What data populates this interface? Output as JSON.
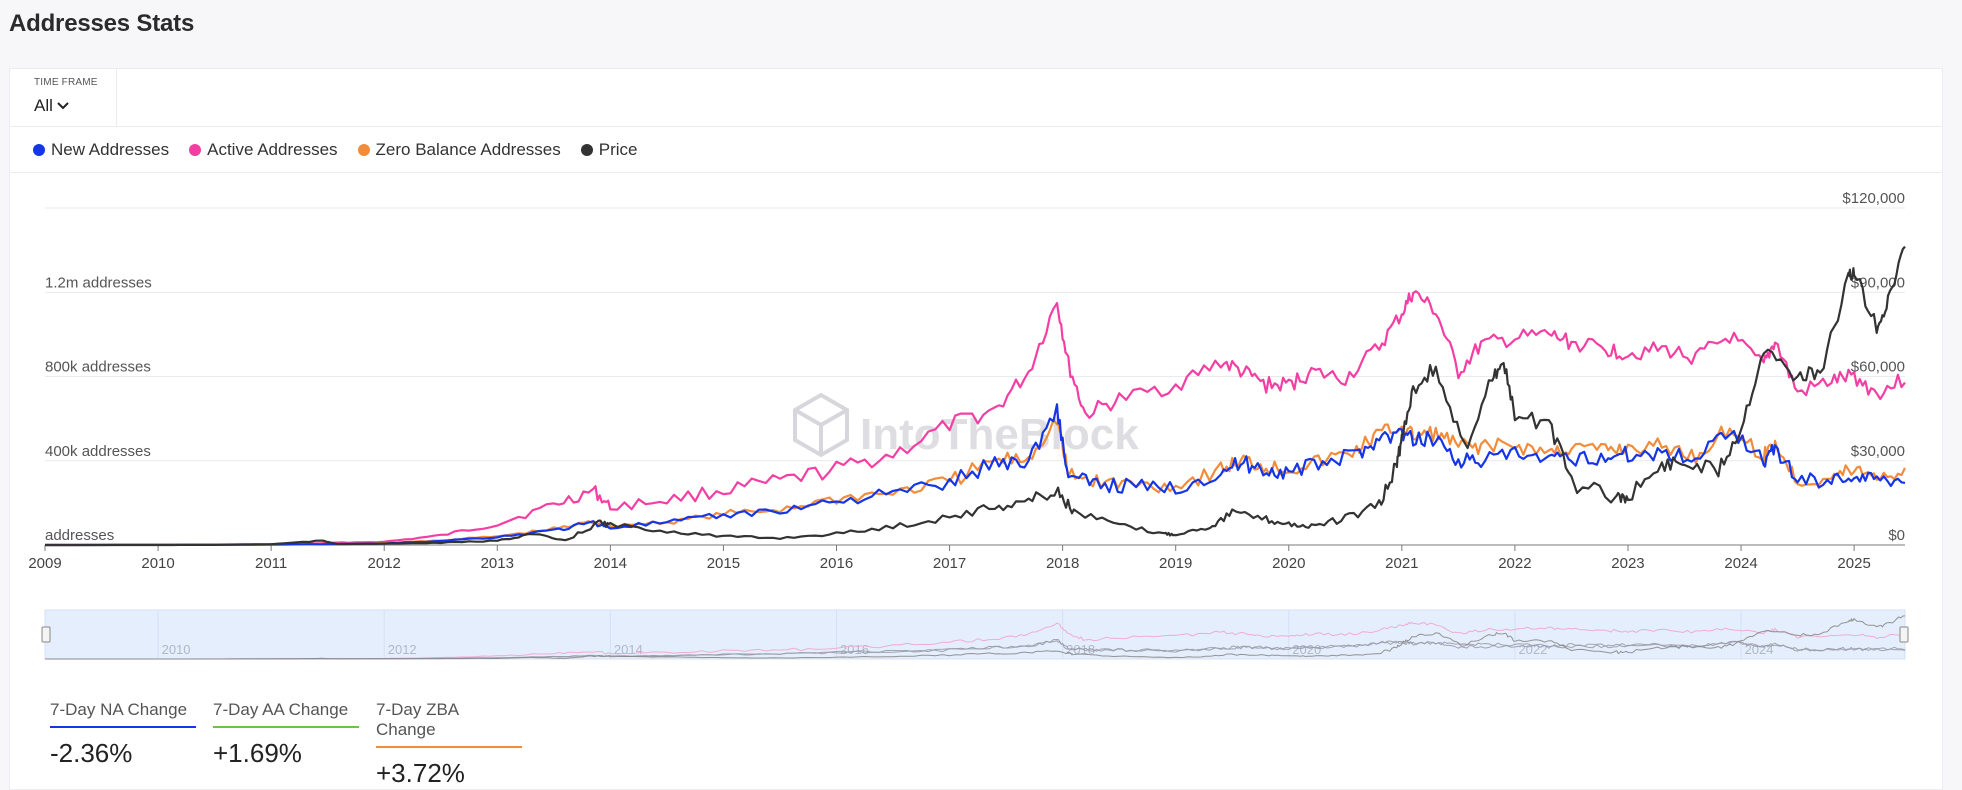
{
  "page": {
    "title": "Addresses Stats"
  },
  "timeframe": {
    "label": "TIME FRAME",
    "value": "All"
  },
  "legend": [
    {
      "label": "New Addresses",
      "color": "#1536e6"
    },
    {
      "label": "Active Addresses",
      "color": "#f33fa4"
    },
    {
      "label": "Zero Balance Addresses",
      "color": "#f28c3a"
    },
    {
      "label": "Price",
      "color": "#333333"
    }
  ],
  "watermark": "IntoTheBlock",
  "stats": [
    {
      "label": "7-Day NA Change",
      "value": "-2.36%",
      "color": "#1536e6"
    },
    {
      "label": "7-Day AA Change",
      "value": "+1.69%",
      "color": "#6cc24a"
    },
    {
      "label": "7-Day ZBA Change",
      "value": "+3.72%",
      "color": "#f28c3a"
    }
  ],
  "chart_data": {
    "type": "line",
    "x_range": [
      2009.0,
      2025.45
    ],
    "x_ticks": [
      "2009",
      "2010",
      "2011",
      "2012",
      "2013",
      "2014",
      "2015",
      "2016",
      "2017",
      "2018",
      "2019",
      "2020",
      "2021",
      "2022",
      "2023",
      "2024",
      "2025"
    ],
    "navigator_ticks": [
      "2010",
      "2012",
      "2014",
      "2016",
      "2018",
      "2020",
      "2022",
      "2024"
    ],
    "y_left": {
      "range": [
        0,
        1600000
      ],
      "ticks": [
        {
          "value": 0,
          "label": "addresses"
        },
        {
          "value": 400000,
          "label": "400k addresses"
        },
        {
          "value": 800000,
          "label": "800k addresses"
        },
        {
          "value": 1200000,
          "label": "1.2m addresses"
        }
      ]
    },
    "y_right": {
      "range": [
        0,
        120000
      ],
      "ticks": [
        {
          "value": 0,
          "label": "$0"
        },
        {
          "value": 30000,
          "label": "$30,000"
        },
        {
          "value": 60000,
          "label": "$60,000"
        },
        {
          "value": 90000,
          "label": "$90,000"
        },
        {
          "value": 120000,
          "label": "$120,000"
        }
      ]
    },
    "grid": true,
    "series": [
      {
        "name": "Active Addresses",
        "color": "#f33fa4",
        "axis": "left",
        "x": [
          2009.0,
          2010.0,
          2011.0,
          2011.3,
          2011.5,
          2012.0,
          2012.5,
          2013.0,
          2013.5,
          2013.85,
          2014.0,
          2014.5,
          2015.0,
          2015.5,
          2016.0,
          2016.5,
          2017.0,
          2017.4,
          2017.7,
          2017.95,
          2018.05,
          2018.2,
          2018.5,
          2019.0,
          2019.4,
          2019.6,
          2019.8,
          2020.0,
          2020.2,
          2020.5,
          2020.8,
          2021.0,
          2021.1,
          2021.3,
          2021.5,
          2021.7,
          2022.0,
          2022.3,
          2022.5,
          2022.8,
          2023.0,
          2023.3,
          2023.6,
          2023.9,
          2024.2,
          2024.3,
          2024.5,
          2024.8,
          2025.0,
          2025.2,
          2025.45
        ],
        "y": [
          0,
          1000,
          3000,
          5000,
          10000,
          15000,
          45000,
          100000,
          190000,
          260000,
          180000,
          215000,
          260000,
          300000,
          360000,
          430000,
          570000,
          640000,
          820000,
          1160000,
          860000,
          620000,
          690000,
          760000,
          870000,
          820000,
          760000,
          760000,
          820000,
          790000,
          940000,
          1100000,
          1200000,
          1110000,
          820000,
          950000,
          980000,
          1000000,
          960000,
          930000,
          910000,
          930000,
          890000,
          990000,
          850000,
          970000,
          720000,
          780000,
          800000,
          720000,
          790000
        ]
      },
      {
        "name": "Zero Balance Addresses",
        "color": "#f28c3a",
        "axis": "left",
        "x": [
          2009.0,
          2010.0,
          2011.0,
          2011.5,
          2012.0,
          2012.5,
          2013.0,
          2013.5,
          2013.85,
          2014.0,
          2014.5,
          2015.0,
          2015.5,
          2016.0,
          2016.5,
          2017.0,
          2017.4,
          2017.7,
          2017.95,
          2018.05,
          2018.3,
          2018.6,
          2019.0,
          2019.4,
          2019.6,
          2019.8,
          2020.0,
          2020.3,
          2020.6,
          2020.8,
          2021.0,
          2021.1,
          2021.3,
          2021.5,
          2021.7,
          2022.0,
          2022.3,
          2022.5,
          2022.8,
          2023.0,
          2023.3,
          2023.6,
          2023.9,
          2024.2,
          2024.3,
          2024.5,
          2024.8,
          2025.0,
          2025.2,
          2025.45
        ],
        "y": [
          0,
          500,
          2000,
          5000,
          8000,
          22000,
          40000,
          75000,
          110000,
          90000,
          110000,
          145000,
          170000,
          220000,
          250000,
          300000,
          400000,
          410000,
          600000,
          330000,
          300000,
          290000,
          280000,
          360000,
          400000,
          370000,
          360000,
          400000,
          450000,
          530000,
          560000,
          520000,
          530000,
          470000,
          470000,
          470000,
          440000,
          460000,
          450000,
          460000,
          470000,
          420000,
          560000,
          420000,
          480000,
          300000,
          320000,
          360000,
          330000,
          340000
        ]
      },
      {
        "name": "New Addresses",
        "color": "#1536e6",
        "axis": "left",
        "x": [
          2009.0,
          2010.0,
          2011.0,
          2011.5,
          2012.0,
          2012.5,
          2013.0,
          2013.5,
          2013.85,
          2014.0,
          2014.5,
          2015.0,
          2015.5,
          2016.0,
          2016.5,
          2017.0,
          2017.4,
          2017.7,
          2017.95,
          2018.05,
          2018.3,
          2018.6,
          2019.0,
          2019.4,
          2019.6,
          2019.8,
          2020.0,
          2020.3,
          2020.6,
          2020.8,
          2021.0,
          2021.1,
          2021.3,
          2021.5,
          2021.7,
          2022.0,
          2022.3,
          2022.5,
          2022.8,
          2023.0,
          2023.3,
          2023.6,
          2023.9,
          2024.2,
          2024.3,
          2024.5,
          2024.8,
          2025.0,
          2025.2,
          2025.45
        ],
        "y": [
          0,
          500,
          2000,
          4000,
          7000,
          20000,
          38000,
          70000,
          105000,
          85000,
          105000,
          140000,
          165000,
          210000,
          245000,
          295000,
          390000,
          400000,
          650000,
          320000,
          290000,
          280000,
          270000,
          350000,
          390000,
          355000,
          345000,
          390000,
          430000,
          510000,
          530000,
          500000,
          510000,
          400000,
          400000,
          430000,
          400000,
          410000,
          420000,
          430000,
          440000,
          410000,
          560000,
          400000,
          460000,
          310000,
          310000,
          330000,
          310000,
          320000
        ]
      },
      {
        "name": "Price",
        "color": "#333333",
        "axis": "right",
        "x": [
          2009.0,
          2010.0,
          2010.5,
          2011.0,
          2011.45,
          2011.6,
          2012.0,
          2012.5,
          2013.0,
          2013.3,
          2013.6,
          2013.9,
          2014.0,
          2014.5,
          2015.0,
          2015.5,
          2016.0,
          2016.5,
          2017.0,
          2017.4,
          2017.7,
          2017.96,
          2018.1,
          2018.5,
          2018.9,
          2019.0,
          2019.3,
          2019.5,
          2019.8,
          2020.0,
          2020.2,
          2020.5,
          2020.8,
          2020.95,
          2021.0,
          2021.1,
          2021.3,
          2021.55,
          2021.8,
          2021.9,
          2022.0,
          2022.3,
          2022.5,
          2022.9,
          2023.0,
          2023.3,
          2023.5,
          2023.8,
          2024.0,
          2024.2,
          2024.5,
          2024.7,
          2024.95,
          2025.0,
          2025.2,
          2025.3,
          2025.45
        ],
        "y": [
          0,
          0,
          50,
          300,
          1500,
          300,
          500,
          800,
          1500,
          4000,
          1500,
          8000,
          7000,
          5000,
          3000,
          2500,
          4000,
          6500,
          10000,
          13500,
          16000,
          19000,
          11500,
          7000,
          4000,
          3800,
          6500,
          11500,
          9000,
          7500,
          6500,
          9500,
          14000,
          28000,
          38000,
          56000,
          63000,
          34000,
          60000,
          65000,
          45000,
          44000,
          22000,
          17000,
          17000,
          28500,
          29500,
          27000,
          42000,
          70000,
          60000,
          61000,
          95000,
          97000,
          78000,
          86000,
          108000
        ]
      }
    ]
  }
}
